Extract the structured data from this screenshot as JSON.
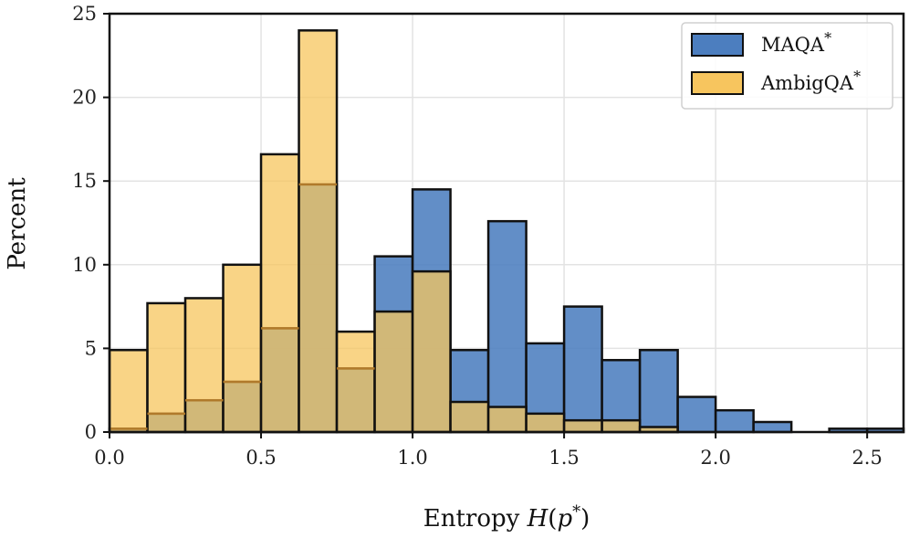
{
  "chart_data": {
    "type": "histogram",
    "xlabel": "Entropy H(p*)",
    "ylabel": "Percent",
    "xlim": [
      0.0,
      2.62
    ],
    "ylim": [
      0,
      25
    ],
    "xticks": [
      0.0,
      0.5,
      1.0,
      1.5,
      2.0,
      2.5
    ],
    "xtick_labels": [
      "0.0",
      "0.5",
      "1.0",
      "1.5",
      "2.0",
      "2.5"
    ],
    "yticks": [
      0,
      5,
      10,
      15,
      20,
      25
    ],
    "ytick_labels": [
      "0",
      "5",
      "10",
      "15",
      "20",
      "25"
    ],
    "grid": true,
    "legend_position": "top-right",
    "bin_edges": [
      0.0,
      0.125,
      0.25,
      0.375,
      0.5,
      0.625,
      0.75,
      0.875,
      1.0,
      1.125,
      1.25,
      1.375,
      1.5,
      1.625,
      1.75,
      1.875,
      2.0,
      2.125,
      2.25,
      2.375,
      2.5,
      2.625
    ],
    "series": [
      {
        "name": "MAQA*",
        "legend_label": "MAQA",
        "color": "#4c7ebf",
        "values": [
          0.2,
          1.1,
          1.9,
          3.0,
          6.2,
          14.8,
          3.8,
          10.5,
          14.5,
          4.9,
          12.6,
          5.3,
          7.5,
          4.3,
          4.9,
          2.1,
          1.3,
          0.6,
          0.0,
          0.2,
          0.2
        ]
      },
      {
        "name": "AmbigQA*",
        "legend_label": "AmbigQA",
        "color": "#f7c55e",
        "values": [
          4.9,
          7.7,
          8.0,
          10.0,
          16.6,
          24.0,
          6.0,
          7.2,
          9.6,
          1.8,
          1.5,
          1.1,
          0.7,
          0.7,
          0.3,
          0.0,
          0.0,
          0.0,
          0.0,
          0.0,
          0.0
        ]
      }
    ]
  }
}
